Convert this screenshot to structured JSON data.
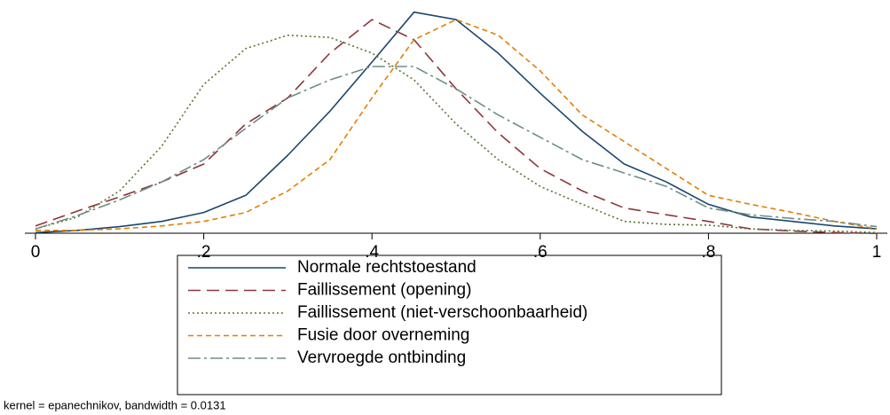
{
  "chart_data": {
    "type": "line",
    "x": [
      0,
      0.05,
      0.1,
      0.15,
      0.2,
      0.25,
      0.3,
      0.35,
      0.4,
      0.45,
      0.5,
      0.55,
      0.6,
      0.65,
      0.7,
      0.75,
      0.8,
      0.85,
      0.9,
      0.95,
      1
    ],
    "series": [
      {
        "name": "Normale rechtstoestand",
        "color": "#1a476f",
        "dash": "solid",
        "values": [
          0.02,
          0.05,
          0.1,
          0.17,
          0.29,
          0.52,
          1.06,
          1.65,
          2.31,
          2.98,
          2.88,
          2.43,
          1.89,
          1.38,
          0.94,
          0.7,
          0.4,
          0.23,
          0.17,
          0.11,
          0.07
        ]
      },
      {
        "name": "Faillissement (opening)",
        "color": "#90353b",
        "dash": "longdash",
        "values": [
          0.11,
          0.31,
          0.5,
          0.7,
          0.94,
          1.48,
          1.83,
          2.43,
          2.88,
          2.61,
          1.95,
          1.36,
          0.88,
          0.58,
          0.35,
          0.26,
          0.17,
          0.07,
          0.04,
          0.02,
          0.01
        ]
      },
      {
        "name": "Faillissement (niet-verschoonbaarheid)",
        "color": "#55752f",
        "dash": "dot",
        "values": [
          0.07,
          0.23,
          0.58,
          1.18,
          2.01,
          2.49,
          2.67,
          2.64,
          2.43,
          2.07,
          1.48,
          1.0,
          0.64,
          0.4,
          0.17,
          0.13,
          0.12,
          0.07,
          0.05,
          0.04,
          0.02
        ]
      },
      {
        "name": "Fusie door overneming",
        "color": "#e37e00",
        "dash": "shortdash",
        "values": [
          0.05,
          0.05,
          0.07,
          0.11,
          0.17,
          0.29,
          0.58,
          1.0,
          1.83,
          2.61,
          2.88,
          2.67,
          2.19,
          1.6,
          1.24,
          0.88,
          0.52,
          0.4,
          0.29,
          0.17,
          0.07
        ]
      },
      {
        "name": "Vervroegde ontbinding",
        "color": "#6e8e84",
        "dash": "dashdot",
        "values": [
          0.07,
          0.25,
          0.46,
          0.7,
          1.0,
          1.42,
          1.83,
          2.07,
          2.25,
          2.25,
          1.95,
          1.6,
          1.3,
          1.0,
          0.82,
          0.64,
          0.35,
          0.26,
          0.21,
          0.17,
          0.1
        ]
      }
    ],
    "xlim": [
      0,
      1
    ],
    "xticks": [
      0,
      {
        "value": 0.2,
        "label": ".2"
      },
      {
        "value": 0.4,
        "label": ".4"
      },
      {
        "value": 0.6,
        "label": ".6"
      },
      {
        "value": 0.8,
        "label": ".8"
      },
      1
    ],
    "ylim": [
      0,
      3
    ],
    "note": "kernel = epanechnikov, bandwidth = 0.0131"
  }
}
